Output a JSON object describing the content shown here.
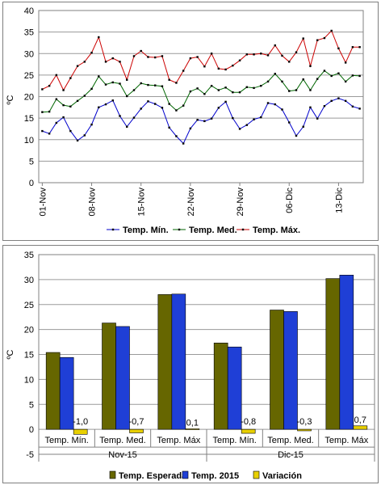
{
  "chart_data": [
    {
      "type": "line",
      "ylabel": "ºC",
      "ylim": [
        0,
        40
      ],
      "yticks": [
        0,
        5,
        10,
        15,
        20,
        25,
        30,
        35,
        40
      ],
      "x_start": "2015-11-01",
      "xtick_labels": [
        "01-Nov",
        "08-Nov",
        "15-Nov",
        "22-Nov",
        "29-Nov",
        "06-Dic",
        "13-Dic"
      ],
      "grid": true,
      "legend": "bottom",
      "series": [
        {
          "name": "Temp. Mín.",
          "color": "#0000cc",
          "values": [
            12.0,
            11.4,
            13.9,
            15.2,
            12.0,
            9.8,
            11.0,
            13.5,
            17.5,
            18.2,
            19.1,
            15.5,
            13.0,
            15.1,
            17.2,
            18.9,
            18.3,
            17.4,
            12.8,
            10.8,
            9.1,
            12.6,
            14.6,
            14.3,
            14.9,
            17.4,
            18.8,
            15.0,
            12.5,
            13.4,
            14.7,
            15.2,
            18.5,
            18.2,
            17.0,
            14.0,
            10.9,
            13.0,
            17.5,
            14.9,
            17.8,
            19.0,
            19.6,
            19.0,
            17.7,
            17.2
          ]
        },
        {
          "name": "Temp. Med.",
          "color": "#006600",
          "values": [
            16.4,
            16.5,
            19.4,
            18.0,
            17.7,
            19.0,
            20.2,
            21.8,
            24.7,
            22.8,
            23.3,
            23.0,
            20.1,
            21.5,
            23.1,
            22.7,
            22.6,
            22.4,
            18.3,
            16.8,
            17.9,
            21.2,
            21.9,
            20.6,
            22.5,
            21.5,
            22.1,
            21.0,
            21.0,
            22.2,
            22.0,
            22.5,
            23.5,
            25.3,
            23.5,
            21.3,
            21.5,
            24.0,
            21.5,
            24.1,
            26.0,
            24.8,
            25.4,
            23.5,
            24.9,
            24.8
          ]
        },
        {
          "name": "Temp. Máx.",
          "color": "#cc0000",
          "values": [
            21.7,
            22.5,
            25.0,
            21.5,
            24.3,
            27.1,
            28.1,
            30.2,
            33.8,
            28.1,
            28.9,
            28.1,
            23.9,
            29.4,
            30.6,
            29.2,
            29.1,
            29.4,
            23.9,
            23.2,
            26.0,
            28.9,
            29.2,
            27.0,
            30.0,
            26.5,
            26.3,
            27.2,
            28.4,
            29.8,
            29.8,
            30.0,
            29.6,
            31.9,
            29.5,
            28.1,
            30.3,
            33.5,
            27.1,
            33.1,
            33.6,
            35.3,
            31.2,
            27.9,
            31.5,
            31.5
          ]
        }
      ]
    },
    {
      "type": "bar",
      "ylabel": "ºC",
      "ylim": [
        -5,
        35
      ],
      "yticks": [
        -5,
        0,
        5,
        10,
        15,
        20,
        25,
        30,
        35
      ],
      "grid": true,
      "legend": "bottom",
      "categories": [
        "Temp. Mín.",
        "Temp. Med.",
        "Temp. Máx",
        "Temp. Mín.",
        "Temp. Med.",
        "Temp. Máx"
      ],
      "groups": [
        "Nov-15",
        "Dic-15"
      ],
      "series": [
        {
          "name": "Temp. Esperada",
          "color": "#666600",
          "values": [
            15.4,
            21.3,
            27.0,
            17.3,
            23.9,
            30.2
          ]
        },
        {
          "name": "Temp. 2015",
          "color": "#1f3fd6",
          "values": [
            14.4,
            20.6,
            27.1,
            16.5,
            23.6,
            30.9
          ]
        },
        {
          "name": "Variación",
          "color": "#e8d000",
          "values": [
            -1.0,
            -0.7,
            0.1,
            -0.8,
            -0.3,
            0.7
          ],
          "data_labels": [
            "-1,0",
            "-0,7",
            "0,1",
            "-0,8",
            "-0,3",
            "0,7"
          ]
        }
      ]
    }
  ]
}
